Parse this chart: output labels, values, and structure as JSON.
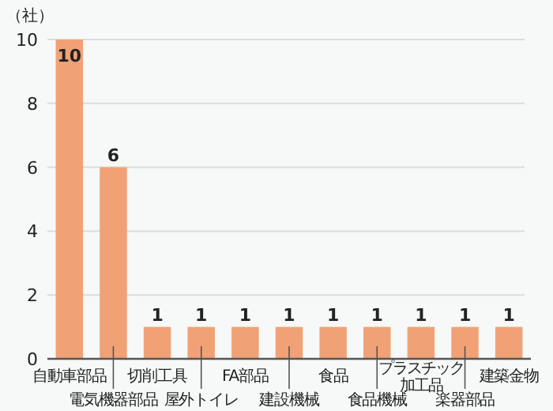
{
  "chart_data": {
    "type": "bar",
    "ylabel": "（社）",
    "categories": [
      "自動車部品",
      "電気機器部品",
      "切削工具",
      "屋外トイレ",
      "FA部品",
      "建設機械",
      "食品",
      "食品機械",
      "プラスチック加工品",
      "楽器部品",
      "建築金物"
    ],
    "values": [
      10,
      6,
      1,
      1,
      1,
      1,
      1,
      1,
      1,
      1,
      1
    ],
    "color": "#f0a276",
    "ylim": [
      0,
      10
    ],
    "yticks": [
      0,
      2,
      4,
      6,
      8,
      10
    ],
    "grid": "y",
    "data_labels": true
  }
}
